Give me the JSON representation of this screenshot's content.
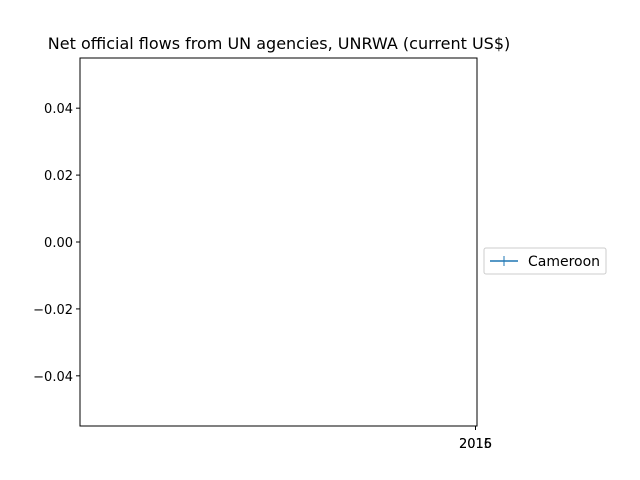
{
  "chart_data": {
    "type": "line",
    "title": "Net official flows from UN agencies, UNRWA (current US$)",
    "xlabel": "",
    "ylabel": "",
    "ylim": [
      -0.055,
      0.055
    ],
    "y_ticks": [
      0.04,
      0.02,
      0.0,
      -0.02,
      -0.04
    ],
    "y_tick_labels": [
      "0.04",
      "0.02",
      "0.00",
      "−0.02",
      "−0.04"
    ],
    "x_tick_labels": [
      "2015",
      "2016"
    ],
    "grid": false,
    "legend_placement": "right",
    "series": [
      {
        "name": "Cameroon",
        "color": "#1f77b4",
        "marker": "plus",
        "x": [
          2015,
          2016
        ],
        "y": [
          null,
          null
        ]
      }
    ]
  }
}
